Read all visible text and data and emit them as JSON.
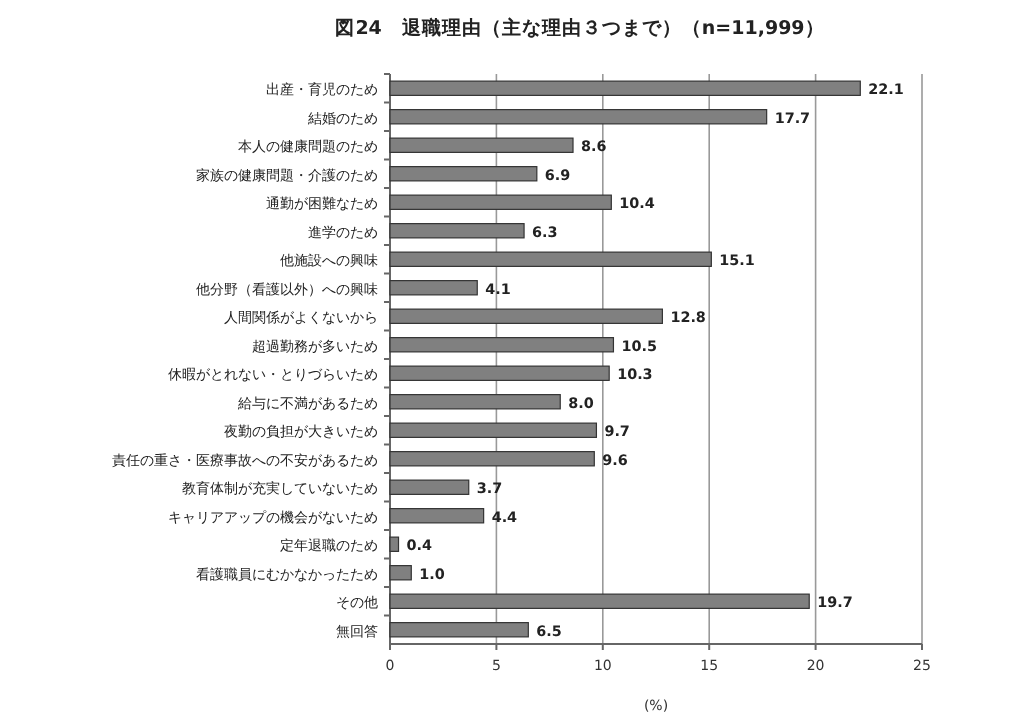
{
  "chart_data": {
    "type": "bar",
    "orientation": "horizontal",
    "title": "図24　退職理由（主な理由３つまで）（n=11,999）",
    "xlabel": "(%)",
    "categories": [
      "出産・育児のため",
      "結婚のため",
      "本人の健康問題のため",
      "家族の健康問題・介護のため",
      "通勤が困難なため",
      "進学のため",
      "他施設への興味",
      "他分野（看護以外）への興味",
      "人間関係がよくないから",
      "超過勤務が多いため",
      "休暇がとれない・とりづらいため",
      "給与に不満があるため",
      "夜勤の負担が大きいため",
      "責任の重さ・医療事故への不安があるため",
      "教育体制が充実していないため",
      "キャリアアップの機会がないため",
      "定年退職のため",
      "看護職員にむかなかったため",
      "その他",
      "無回答"
    ],
    "values": [
      22.1,
      17.7,
      8.6,
      6.9,
      10.4,
      6.3,
      15.1,
      4.1,
      12.8,
      10.5,
      10.3,
      8.0,
      9.7,
      9.6,
      3.7,
      4.4,
      0.4,
      1.0,
      19.7,
      6.5
    ],
    "value_labels": [
      "22.1",
      "17.7",
      "8.6",
      "6.9",
      "10.4",
      "6.3",
      "15.1",
      "4.1",
      "12.8",
      "10.5",
      "10.3",
      "8.0",
      "9.7",
      "9.6",
      "3.7",
      "4.4",
      "0.4",
      "1.0",
      "19.7",
      "6.5"
    ],
    "color": "#808080",
    "xlim": [
      0,
      25
    ],
    "xticks": [
      0,
      5,
      10,
      15,
      20,
      25
    ],
    "grid": "x"
  }
}
